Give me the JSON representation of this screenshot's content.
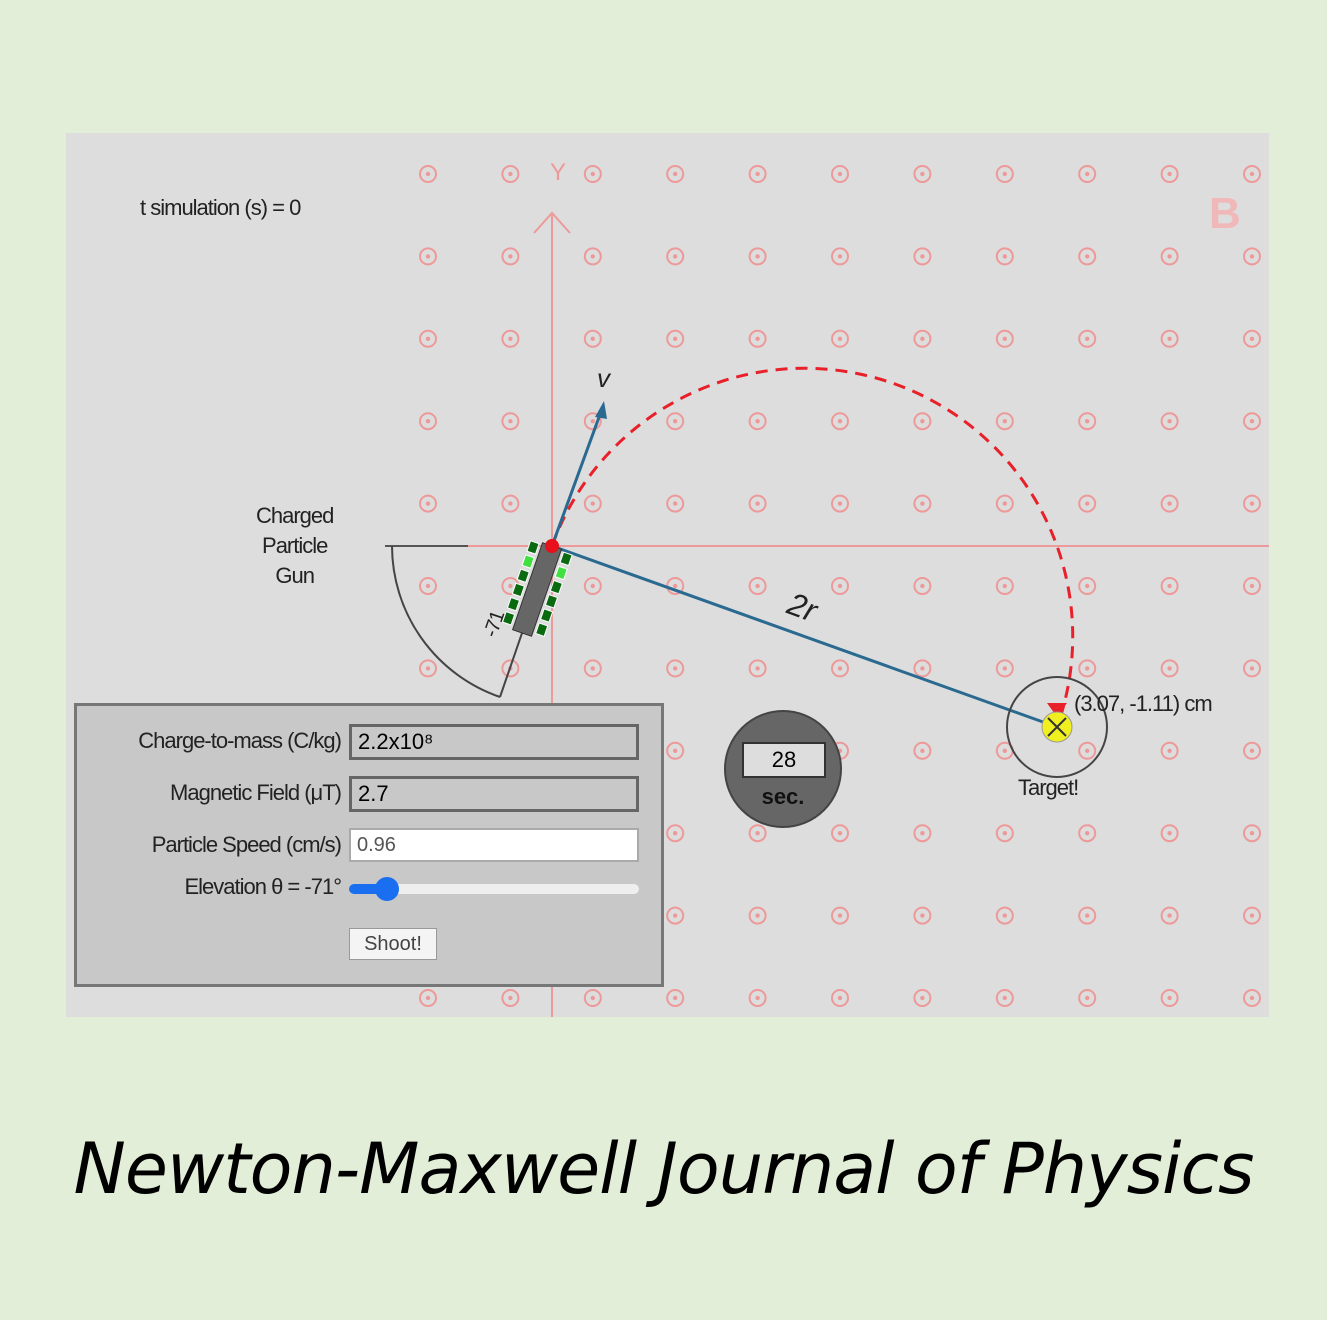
{
  "simulation": {
    "time_label": "t simulation (s) = 0",
    "field_label": "B",
    "y_axis_label": "Y",
    "velocity_label": "v",
    "radius_label": "2r",
    "gun_label": [
      "Charged",
      "Particle",
      "Gun"
    ],
    "angle_label": "-71",
    "target_coords": "(3.07, -1.11) cm",
    "target_label": "Target!",
    "timer_value": "28",
    "timer_unit": "sec.",
    "colors": {
      "field_dots": "#ee9999",
      "trajectory": "#e8202a",
      "vector": "#2a6a90",
      "target": "#f0f020",
      "slider": "#1a6ff0"
    }
  },
  "controls": {
    "charge_to_mass_label": "Charge-to-mass (C/kg)",
    "charge_to_mass_value": "2.2x10⁸",
    "magnetic_field_label": "Magnetic Field (μT)",
    "magnetic_field_value": "2.7",
    "speed_label": "Particle Speed (cm/s)",
    "speed_value": "0.96",
    "elevation_label": "Elevation θ = -71°",
    "elevation_value_deg": -71,
    "shoot_label": "Shoot!"
  },
  "footer": {
    "journal_title": "Newton-Maxwell Journal of Physics"
  }
}
